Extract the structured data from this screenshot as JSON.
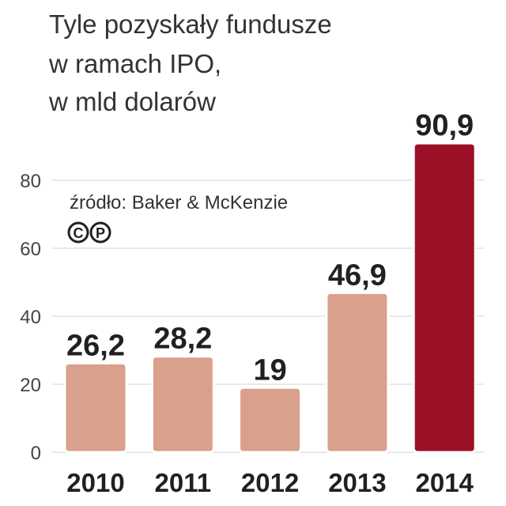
{
  "chart_data": {
    "type": "bar",
    "title": [
      "Tyle pozyskały fundusze",
      "w ramach IPO,",
      "w mld dolarów"
    ],
    "source": "źródło: Baker & McKenzie",
    "rights": [
      "C",
      "P"
    ],
    "categories": [
      "2010",
      "2011",
      "2012",
      "2013",
      "2014"
    ],
    "values": [
      26.2,
      28.2,
      19,
      46.9,
      90.9
    ],
    "value_labels": [
      "26,2",
      "28,2",
      "19",
      "46,9",
      "90,9"
    ],
    "colors": [
      "#d9a08b",
      "#d9a08b",
      "#d9a08b",
      "#d9a08b",
      "#9c1027"
    ],
    "ylim": [
      0,
      100
    ],
    "yticks": [
      0,
      20,
      40,
      60,
      80
    ],
    "grid": true
  }
}
